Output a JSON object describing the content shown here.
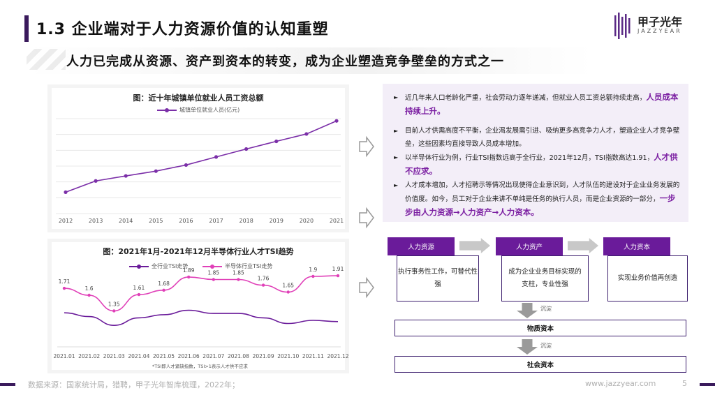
{
  "header": {
    "title": "1.3 企业端对于人力资源价值的认知重塑",
    "subtitle": "人力已完成从资源、资产到资本的转变，成为企业塑造竞争壁垒的方式之一",
    "logo_text": "甲子光年",
    "logo_sub": "JAZZYEAR"
  },
  "chart1": {
    "title": "图：近十年城镇单位就业人员工资总额",
    "legend": "城镇单位就业人员(亿元)",
    "color": "#7b2fa8"
  },
  "chart2": {
    "title": "图：2021年1月-2021年12月半导体行业人才TSI趋势",
    "legend_all": "全行业TSI走势",
    "legend_semi": "半导体行业TSI走势",
    "footnote": "*TSI即人才紧缺指数，TSI>1表示人才供不应求",
    "color_all": "#6a1b9a",
    "color_semi": "#e040b8"
  },
  "chart_data": [
    {
      "type": "line",
      "title": "图：近十年城镇单位就业人员工资总额",
      "x": [
        "2012",
        "2013",
        "2014",
        "2015",
        "2016",
        "2017",
        "2018",
        "2019",
        "2020",
        "2021"
      ],
      "series": [
        {
          "name": "城镇单位就业人员(亿元)",
          "values": [
            70900,
            93000,
            102800,
            112200,
            124200,
            140000,
            155500,
            170600,
            185000,
            210600
          ]
        }
      ],
      "legend_position": "top"
    },
    {
      "type": "line",
      "title": "图：2021年1月-2021年12月半导体行业人才TSI趋势",
      "x": [
        "2021.01",
        "2021.02",
        "2021.03",
        "2021.04",
        "2021.05",
        "2021.06",
        "2021.07",
        "2021.08",
        "2021.09",
        "2021.10",
        "2021.11",
        "2021.12"
      ],
      "series": [
        {
          "name": "全行业TSI走势",
          "values": [
            1.32,
            1.26,
            1.12,
            1.24,
            1.29,
            1.36,
            1.31,
            1.31,
            1.24,
            1.15,
            1.2,
            1.18
          ]
        },
        {
          "name": "半导体行业TSI走势",
          "values": [
            1.71,
            1.6,
            1.35,
            1.61,
            1.68,
            1.89,
            1.85,
            1.85,
            1.76,
            1.65,
            1.9,
            1.91
          ]
        }
      ],
      "data_labels": [
        "1.71",
        "1.6",
        "1.35",
        "1.61",
        "1.68",
        "1.89",
        "1.85",
        "1.85",
        "1.76",
        "1.65",
        "1.9",
        "1.91"
      ],
      "legend_position": "top"
    }
  ],
  "bullets": [
    {
      "text": "近几年来人口老龄化严重，社会劳动力逐年递减，但就业人员工资总额持续走高，",
      "hl": "人员成本持续上升。"
    },
    {
      "text": "目前人才供需高度不平衡，企业渴发展需引进、吸纳更多高竞争力人才，塑造企业人才竞争壁垒，这些因素均直接导致人员成本增加。",
      "hl": ""
    },
    {
      "text": "以半导体行业为例，行业TSI指数远高于全行业，2021年12月，TSI指数高达1.91，",
      "hl": "人才供不应求。"
    },
    {
      "text": "人才成本增加，人才招聘示等情况出现使得企业意识到，人才队伍的建设对于企业业务发展的价值度。如今，员工对于企业来讲不单纯是任务的执行人员，而是企业资源的一部分，",
      "hl": "一步步由人力资源→人力资产→人力资本。"
    }
  ],
  "stages": [
    {
      "head": "人力资源",
      "body": "执行事务性工作，可替代性强"
    },
    {
      "head": "人力资产",
      "body": "成为企业业务目标实现的支柱，专业性强"
    },
    {
      "head": "人力资本",
      "body": "实现业务价值再创造"
    }
  ],
  "sink_label": "沉淀",
  "capital": {
    "material": "物质资本",
    "social": "社会资本"
  },
  "footer": {
    "source": "数据来源：国家统计局，猎聘，甲子光年智库梳理，2022年；",
    "website": "www.jazzyear.com",
    "page": "5"
  }
}
